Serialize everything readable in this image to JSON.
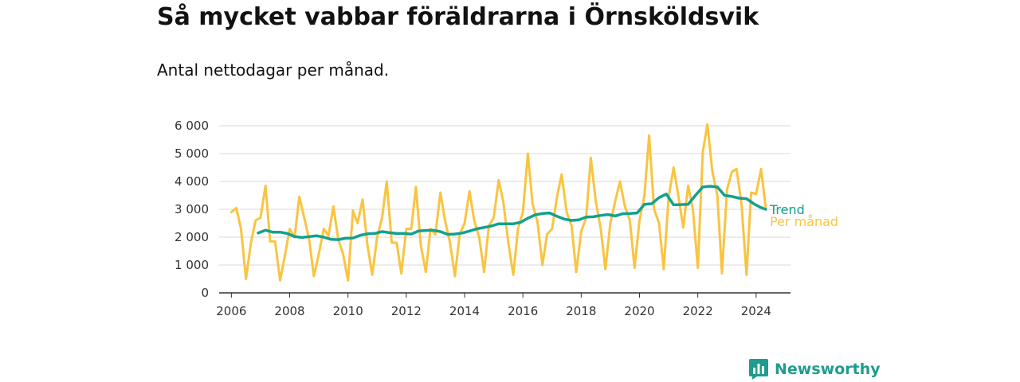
{
  "header": {
    "title": "Så mycket vabbar föräldrarna i Örnsköldsvik",
    "subtitle": "Antal nettodagar per månad."
  },
  "brand": {
    "name": "Newsworthy",
    "icon": "newsworthy-logo-icon"
  },
  "colors": {
    "trend": "#13a08e",
    "monthly": "#f9c441",
    "grid": "#d9d9d9",
    "axis": "#333333"
  },
  "chart_data": {
    "type": "line",
    "title": "Så mycket vabbar föräldrarna i Örnsköldsvik",
    "subtitle": "Antal nettodagar per månad.",
    "xlabel": "",
    "ylabel": "",
    "xlim": [
      2005.58,
      2025.18
    ],
    "ylim": [
      0,
      6000
    ],
    "x_ticks": [
      2006,
      2008,
      2010,
      2012,
      2014,
      2016,
      2018,
      2020,
      2022,
      2024
    ],
    "x_tick_labels": [
      "2006",
      "2008",
      "2010",
      "2012",
      "2014",
      "2016",
      "2018",
      "2020",
      "2022",
      "2024"
    ],
    "y_ticks": [
      0,
      1000,
      2000,
      3000,
      4000,
      5000,
      6000
    ],
    "y_tick_labels": [
      "0",
      "1 000",
      "2 000",
      "3 000",
      "4 000",
      "5 000",
      "6 000"
    ],
    "grid": true,
    "series": [
      {
        "name": "Trend",
        "x": [
          2006.92,
          2007.17,
          2007.42,
          2007.67,
          2007.92,
          2008.17,
          2008.42,
          2008.67,
          2008.92,
          2009.17,
          2009.42,
          2009.67,
          2009.92,
          2010.17,
          2010.42,
          2010.67,
          2010.92,
          2011.17,
          2011.42,
          2011.67,
          2011.92,
          2012.17,
          2012.42,
          2012.67,
          2012.92,
          2013.17,
          2013.42,
          2013.67,
          2013.92,
          2014.17,
          2014.42,
          2014.67,
          2014.92,
          2015.17,
          2015.42,
          2015.67,
          2015.92,
          2016.17,
          2016.42,
          2016.67,
          2016.92,
          2017.17,
          2017.42,
          2017.67,
          2017.92,
          2018.17,
          2018.42,
          2018.67,
          2018.92,
          2019.17,
          2019.42,
          2019.67,
          2019.92,
          2020.17,
          2020.42,
          2020.67,
          2020.92,
          2021.17,
          2021.42,
          2021.67,
          2021.92,
          2022.17,
          2022.42,
          2022.67,
          2022.92,
          2023.17,
          2023.42,
          2023.67,
          2023.92,
          2024.17,
          2024.33
        ],
        "values": [
          2150,
          2250,
          2180,
          2180,
          2130,
          2020,
          1990,
          2020,
          2050,
          2000,
          1920,
          1910,
          1960,
          1970,
          2070,
          2120,
          2130,
          2200,
          2160,
          2130,
          2130,
          2110,
          2220,
          2240,
          2250,
          2200,
          2100,
          2110,
          2150,
          2220,
          2300,
          2350,
          2400,
          2480,
          2480,
          2480,
          2530,
          2680,
          2800,
          2850,
          2870,
          2750,
          2650,
          2600,
          2620,
          2720,
          2730,
          2780,
          2810,
          2760,
          2840,
          2850,
          2870,
          3180,
          3200,
          3420,
          3550,
          3160,
          3170,
          3180,
          3500,
          3800,
          3830,
          3800,
          3500,
          3460,
          3400,
          3380,
          3200,
          3060,
          3000
        ]
      },
      {
        "name": "Per månad",
        "x": [
          2006.0,
          2006.17,
          2006.33,
          2006.5,
          2006.67,
          2006.83,
          2007.0,
          2007.17,
          2007.33,
          2007.5,
          2007.67,
          2007.83,
          2008.0,
          2008.17,
          2008.33,
          2008.5,
          2008.67,
          2008.83,
          2009.0,
          2009.17,
          2009.33,
          2009.5,
          2009.67,
          2009.83,
          2010.0,
          2010.17,
          2010.33,
          2010.5,
          2010.67,
          2010.83,
          2011.0,
          2011.17,
          2011.33,
          2011.5,
          2011.67,
          2011.83,
          2012.0,
          2012.17,
          2012.33,
          2012.5,
          2012.67,
          2012.83,
          2013.0,
          2013.17,
          2013.33,
          2013.5,
          2013.67,
          2013.83,
          2014.0,
          2014.17,
          2014.33,
          2014.5,
          2014.67,
          2014.83,
          2015.0,
          2015.17,
          2015.33,
          2015.5,
          2015.67,
          2015.83,
          2016.0,
          2016.17,
          2016.33,
          2016.5,
          2016.67,
          2016.83,
          2017.0,
          2017.17,
          2017.33,
          2017.5,
          2017.67,
          2017.83,
          2018.0,
          2018.17,
          2018.33,
          2018.5,
          2018.67,
          2018.83,
          2019.0,
          2019.17,
          2019.33,
          2019.5,
          2019.67,
          2019.83,
          2020.0,
          2020.17,
          2020.33,
          2020.5,
          2020.67,
          2020.83,
          2021.0,
          2021.17,
          2021.33,
          2021.5,
          2021.67,
          2021.83,
          2022.0,
          2022.17,
          2022.33,
          2022.5,
          2022.67,
          2022.83,
          2023.0,
          2023.17,
          2023.33,
          2023.5,
          2023.67,
          2023.83,
          2024.0,
          2024.17,
          2024.33
        ],
        "values": [
          2900,
          3050,
          2300,
          500,
          1800,
          2600,
          2700,
          3850,
          1850,
          1850,
          450,
          1300,
          2300,
          2000,
          3450,
          2700,
          1900,
          600,
          1400,
          2300,
          2050,
          3100,
          1900,
          1400,
          450,
          2950,
          2500,
          3350,
          1700,
          650,
          2000,
          2700,
          4000,
          1800,
          1800,
          700,
          2300,
          2300,
          3800,
          1700,
          750,
          2300,
          2100,
          3600,
          2600,
          1800,
          600,
          2100,
          2500,
          3650,
          2600,
          2000,
          750,
          2400,
          2700,
          4050,
          3250,
          1800,
          650,
          2300,
          2900,
          5000,
          3200,
          2550,
          1000,
          2100,
          2300,
          3450,
          4250,
          2900,
          2400,
          750,
          2200,
          2700,
          4850,
          3300,
          2300,
          850,
          2500,
          3300,
          4000,
          3100,
          2600,
          900,
          2600,
          3500,
          5650,
          3000,
          2500,
          850,
          3450,
          4500,
          3500,
          2350,
          3850,
          3000,
          900,
          5050,
          6050,
          4350,
          3500,
          700,
          3700,
          4350,
          4450,
          3200,
          650,
          3600,
          3550,
          4450,
          3050
        ]
      }
    ],
    "line_labels": [
      "Trend",
      "Per månad"
    ]
  }
}
